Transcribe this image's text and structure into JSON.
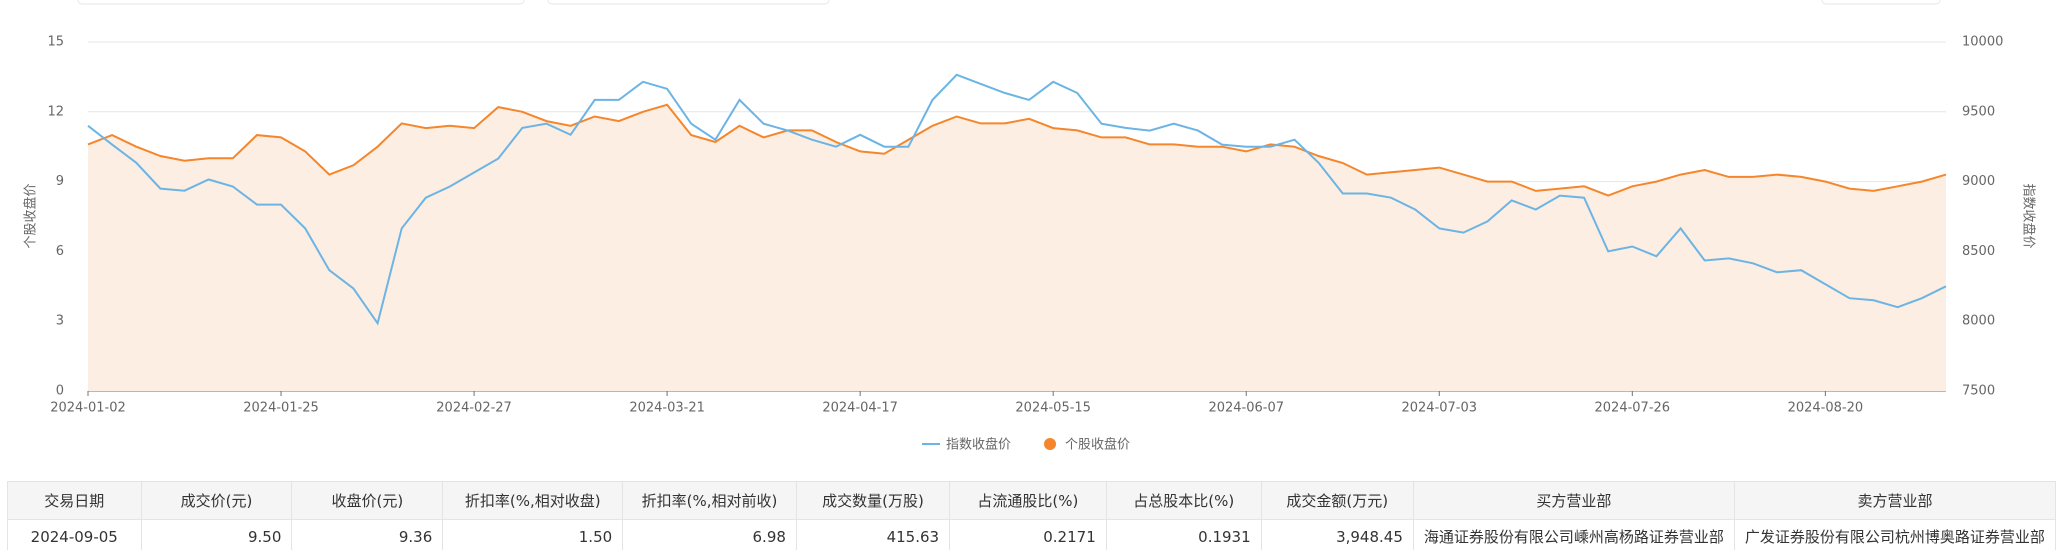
{
  "chart_data": {
    "type": "line",
    "y_label": "个股收盘价",
    "y2_label": "指数收盘价",
    "categories": [
      "2024-01-02",
      null,
      null,
      null,
      null,
      null,
      null,
      null,
      "2024-01-25",
      null,
      null,
      null,
      null,
      null,
      null,
      null,
      "2024-02-27",
      null,
      null,
      null,
      null,
      null,
      null,
      null,
      "2024-03-21",
      null,
      null,
      null,
      null,
      null,
      null,
      null,
      "2024-04-17",
      null,
      null,
      null,
      null,
      null,
      null,
      null,
      "2024-05-15",
      null,
      null,
      null,
      null,
      null,
      null,
      null,
      "2024-06-07",
      null,
      null,
      null,
      null,
      null,
      null,
      null,
      "2024-07-03",
      null,
      null,
      null,
      null,
      null,
      null,
      null,
      "2024-07-26",
      null,
      null,
      null,
      null,
      null,
      null,
      null,
      "2024-08-20",
      null,
      null,
      null,
      null,
      null
    ],
    "series": [
      {
        "name": "指数收盘价",
        "color": "#6cb4e4",
        "axis": "y2",
        "values": [
          9400,
          9265,
          9135,
          8950,
          8935,
          9015,
          8965,
          8835,
          8835,
          8665,
          8365,
          8235,
          7985,
          8665,
          8885,
          8965,
          9065,
          9165,
          9385,
          9415,
          9335,
          9585,
          9585,
          9715,
          9665,
          9415,
          9300,
          9585,
          9415,
          9365,
          9300,
          9250,
          9335,
          9250,
          9250,
          9585,
          9765,
          9700,
          9635,
          9585,
          9715,
          9635,
          9415,
          9385,
          9365,
          9415,
          9365,
          9265,
          9250,
          9250,
          9300,
          9135,
          8915,
          8915,
          8885,
          8800,
          8665,
          8635,
          8715,
          8865,
          8800,
          8900,
          8885,
          8500,
          8535,
          8465,
          8665,
          8435,
          8450,
          8415,
          8350,
          8365,
          8265,
          8165,
          8150,
          8100,
          8165,
          8250
        ]
      },
      {
        "name": "个股收盘价",
        "color": "#f5862b",
        "fill": "#fdeee3",
        "values": [
          10.6,
          11.0,
          10.5,
          10.1,
          9.9,
          10.0,
          10.0,
          11.0,
          10.9,
          10.3,
          9.3,
          9.7,
          10.5,
          11.5,
          11.3,
          11.4,
          11.3,
          12.2,
          12.0,
          11.6,
          11.4,
          11.8,
          11.6,
          12.0,
          12.3,
          11.0,
          10.7,
          11.4,
          10.9,
          11.2,
          11.2,
          10.7,
          10.3,
          10.2,
          10.8,
          11.4,
          11.8,
          11.5,
          11.5,
          11.7,
          11.3,
          11.2,
          10.9,
          10.9,
          10.6,
          10.6,
          10.5,
          10.5,
          10.3,
          10.6,
          10.5,
          10.1,
          9.8,
          9.3,
          9.4,
          9.5,
          9.6,
          9.3,
          9.0,
          9.0,
          8.6,
          8.7,
          8.8,
          8.4,
          8.8,
          9.0,
          9.3,
          9.5,
          9.2,
          9.2,
          9.3,
          9.2,
          9.0,
          8.7,
          8.6,
          8.8,
          9.0,
          9.3
        ]
      }
    ],
    "ylim": [
      0,
      15
    ],
    "yticks": [
      0,
      3,
      6,
      9,
      12,
      15
    ],
    "y2lim": [
      7500,
      10000
    ],
    "y2ticks": [
      7500,
      8000,
      8500,
      9000,
      9500,
      10000
    ],
    "grid": true
  },
  "table": {
    "headers": [
      "交易日期",
      "成交价(元)",
      "收盘价(元)",
      "折扣率(%,相对收盘)",
      "折扣率(%,相对前收)",
      "成交数量(万股)",
      "占流通股比(%)",
      "占总股本比(%)",
      "成交金额(万元)",
      "买方营业部",
      "卖方营业部"
    ],
    "rows": [
      [
        "2024-09-05",
        "9.50",
        "9.36",
        "1.50",
        "6.98",
        "415.63",
        "0.2171",
        "0.1931",
        "3,948.45",
        "海通证券股份有限公司嵊州高杨路证券营业部",
        "广发证券股份有限公司杭州博奥路证券营业部"
      ]
    ]
  }
}
